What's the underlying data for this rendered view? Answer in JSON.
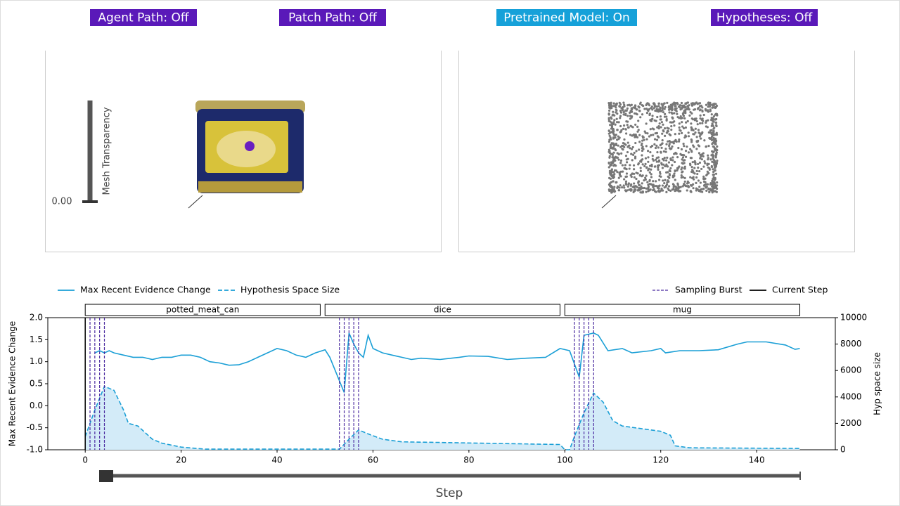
{
  "toggles": [
    {
      "label": "Agent Path: Off",
      "color": "#5a19b9"
    },
    {
      "label": "Patch Path: Off",
      "color": "#5a19b9"
    },
    {
      "label": "Pretrained Model: On",
      "color": "#16a1d9"
    },
    {
      "label": "Hypotheses: Off",
      "color": "#5a19b9"
    }
  ],
  "mesh_transparency": {
    "label": "Mesh Transparency",
    "value": 0,
    "value_label": "0.00"
  },
  "chart_data": {
    "type": "line",
    "xlabel": "Step",
    "ylabel": "Max Recent Evidence Change",
    "y2label": "Hyp space size",
    "xlim": [
      -7.8,
      156.4
    ],
    "xticks": [
      0,
      20,
      40,
      60,
      80,
      100,
      120,
      140
    ],
    "ylim": [
      -1,
      2
    ],
    "yticks": [
      {
        "value": -1,
        "label": "-1.0"
      },
      {
        "value": -0.5,
        "label": "-0.5"
      },
      {
        "value": 0,
        "label": "0.0"
      },
      {
        "value": 0.5,
        "label": "0.5"
      },
      {
        "value": 1,
        "label": "1.0"
      },
      {
        "value": 1.5,
        "label": "1.5"
      },
      {
        "value": 2,
        "label": "2.0"
      }
    ],
    "y2lim": [
      0,
      10000
    ],
    "y2ticks": [
      0,
      2000,
      4000,
      6000,
      8000,
      10000
    ],
    "series": [
      {
        "name": "Max Recent Evidence Change",
        "color": "#1a9fd6",
        "dash": false,
        "x": [
          2,
          3,
          4,
          5,
          6,
          8,
          10,
          12,
          14,
          16,
          18,
          20,
          22,
          24,
          26,
          28,
          30,
          32,
          34,
          36,
          38,
          40,
          42,
          44,
          46,
          48,
          50,
          51,
          54,
          55,
          56,
          57,
          58,
          59,
          60,
          62,
          64,
          66,
          68,
          70,
          74,
          78,
          80,
          84,
          88,
          92,
          96,
          99,
          101,
          103,
          104,
          106,
          107,
          109,
          112,
          114,
          118,
          120,
          121,
          124,
          128,
          132,
          136,
          138,
          142,
          146,
          148,
          149
        ],
        "values": [
          1.2,
          1.25,
          1.2,
          1.25,
          1.2,
          1.15,
          1.1,
          1.1,
          1.05,
          1.1,
          1.1,
          1.15,
          1.15,
          1.1,
          1.0,
          0.97,
          0.92,
          0.93,
          1.0,
          1.1,
          1.2,
          1.3,
          1.25,
          1.15,
          1.1,
          1.2,
          1.27,
          1.1,
          0.3,
          1.65,
          1.4,
          1.2,
          1.1,
          1.6,
          1.3,
          1.2,
          1.15,
          1.1,
          1.05,
          1.08,
          1.05,
          1.1,
          1.13,
          1.12,
          1.05,
          1.08,
          1.1,
          1.3,
          1.25,
          0.65,
          1.6,
          1.65,
          1.6,
          1.25,
          1.3,
          1.2,
          1.25,
          1.3,
          1.2,
          1.25,
          1.25,
          1.27,
          1.4,
          1.45,
          1.45,
          1.38,
          1.28,
          1.3
        ]
      },
      {
        "name": "Hypothesis Space Size",
        "color": "#1a9fd6",
        "dash": true,
        "fill": "#d3ebf8",
        "axis": "y2",
        "x": [
          0,
          1,
          2,
          4,
          6,
          8,
          9,
          11,
          14,
          16,
          20,
          25,
          53,
          55,
          57,
          59,
          62,
          66,
          99,
          100,
          101,
          102,
          104,
          106,
          108,
          110,
          112,
          120,
          122,
          123,
          126,
          149
        ],
        "values": [
          1000,
          2000,
          3000,
          4800,
          4500,
          3000,
          2000,
          1800,
          800,
          500,
          200,
          50,
          50,
          800,
          1500,
          1200,
          800,
          600,
          400,
          0,
          0,
          1000,
          2800,
          4300,
          3600,
          2200,
          1800,
          1400,
          1100,
          300,
          150,
          100
        ]
      }
    ],
    "sampling_bursts": {
      "name": "Sampling Burst",
      "color": "#4b2aa0",
      "x": [
        1,
        2,
        3,
        4,
        53,
        54,
        55,
        56,
        57,
        102,
        103,
        104,
        105,
        106
      ]
    },
    "current_step": {
      "name": "Current Step",
      "color": "#000000",
      "value": 0
    },
    "segments": [
      {
        "label": "potted_meat_can",
        "start": 0,
        "end": 49
      },
      {
        "label": "dice",
        "start": 50,
        "end": 99
      },
      {
        "label": "mug",
        "start": 100,
        "end": 149
      }
    ]
  }
}
